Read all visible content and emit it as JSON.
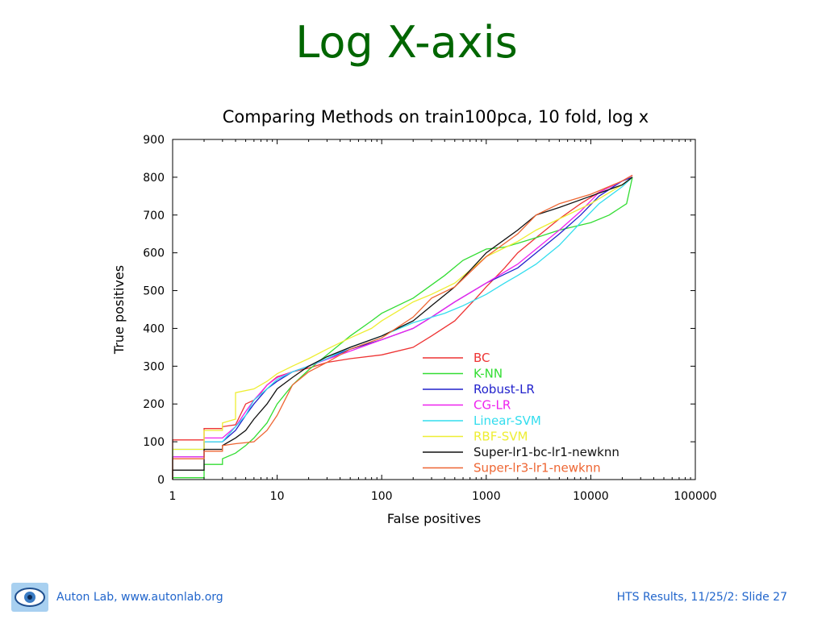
{
  "slide": {
    "title": "Log X-axis"
  },
  "footer": {
    "left": "Auton Lab, www.autonlab.org",
    "right": "HTS Results, 11/25/2: Slide 27",
    "logo_icon": "eye-logo-icon"
  },
  "chart_data": {
    "type": "line",
    "title": "Comparing Methods on train100pca, 10 fold, log x",
    "xlabel": "False positives",
    "ylabel": "True positives",
    "xscale": "log",
    "xlim": [
      1,
      100000
    ],
    "ylim": [
      0,
      900
    ],
    "xticks": [
      1,
      10,
      100,
      1000,
      10000,
      100000
    ],
    "xtick_labels": [
      "1",
      "10",
      "100",
      "1000",
      "10000",
      "100000"
    ],
    "yticks": [
      0,
      100,
      200,
      300,
      400,
      500,
      600,
      700,
      800,
      900
    ],
    "ytick_labels": [
      "0",
      "100",
      "200",
      "300",
      "400",
      "500",
      "600",
      "700",
      "800",
      "900"
    ],
    "legend_position": "bottom-right",
    "series": [
      {
        "name": "BC",
        "color": "#ee3333",
        "points": [
          [
            1,
            0
          ],
          [
            1,
            105
          ],
          [
            2,
            105
          ],
          [
            2,
            135
          ],
          [
            3,
            135
          ],
          [
            3,
            140
          ],
          [
            4,
            145
          ],
          [
            5,
            200
          ],
          [
            6,
            210
          ],
          [
            7,
            230
          ],
          [
            8,
            250
          ],
          [
            10,
            272
          ],
          [
            14,
            285
          ],
          [
            20,
            295
          ],
          [
            30,
            310
          ],
          [
            50,
            320
          ],
          [
            100,
            330
          ],
          [
            200,
            350
          ],
          [
            300,
            380
          ],
          [
            500,
            420
          ],
          [
            800,
            480
          ],
          [
            1000,
            510
          ],
          [
            1500,
            560
          ],
          [
            2000,
            600
          ],
          [
            3000,
            640
          ],
          [
            5000,
            690
          ],
          [
            8000,
            730
          ],
          [
            12000,
            760
          ],
          [
            20000,
            790
          ],
          [
            25000,
            805
          ]
        ]
      },
      {
        "name": "K-NN",
        "color": "#33dd33",
        "points": [
          [
            1,
            0
          ],
          [
            1,
            5
          ],
          [
            2,
            5
          ],
          [
            2,
            40
          ],
          [
            3,
            40
          ],
          [
            3,
            55
          ],
          [
            4,
            70
          ],
          [
            5,
            90
          ],
          [
            6,
            110
          ],
          [
            8,
            150
          ],
          [
            10,
            200
          ],
          [
            14,
            250
          ],
          [
            20,
            290
          ],
          [
            30,
            330
          ],
          [
            50,
            380
          ],
          [
            80,
            420
          ],
          [
            100,
            440
          ],
          [
            200,
            480
          ],
          [
            400,
            540
          ],
          [
            600,
            580
          ],
          [
            1000,
            610
          ],
          [
            1500,
            615
          ],
          [
            2000,
            625
          ],
          [
            3000,
            640
          ],
          [
            5000,
            660
          ],
          [
            10000,
            680
          ],
          [
            15000,
            700
          ],
          [
            22000,
            730
          ],
          [
            25000,
            800
          ]
        ]
      },
      {
        "name": "Robust-LR",
        "color": "#2222cc",
        "points": [
          [
            1,
            0
          ],
          [
            1,
            60
          ],
          [
            2,
            60
          ],
          [
            2,
            100
          ],
          [
            3,
            100
          ],
          [
            4,
            130
          ],
          [
            5,
            170
          ],
          [
            6,
            200
          ],
          [
            8,
            240
          ],
          [
            10,
            260
          ],
          [
            14,
            285
          ],
          [
            20,
            300
          ],
          [
            30,
            320
          ],
          [
            50,
            345
          ],
          [
            100,
            370
          ],
          [
            200,
            400
          ],
          [
            300,
            430
          ],
          [
            500,
            470
          ],
          [
            1000,
            520
          ],
          [
            2000,
            560
          ],
          [
            3000,
            600
          ],
          [
            5000,
            650
          ],
          [
            8000,
            700
          ],
          [
            12000,
            750
          ],
          [
            20000,
            790
          ],
          [
            25000,
            800
          ]
        ]
      },
      {
        "name": "CG-LR",
        "color": "#ee22ee",
        "points": [
          [
            1,
            0
          ],
          [
            1,
            60
          ],
          [
            2,
            60
          ],
          [
            2,
            110
          ],
          [
            3,
            110
          ],
          [
            4,
            140
          ],
          [
            5,
            180
          ],
          [
            6,
            210
          ],
          [
            8,
            250
          ],
          [
            10,
            270
          ],
          [
            14,
            285
          ],
          [
            20,
            300
          ],
          [
            30,
            318
          ],
          [
            50,
            340
          ],
          [
            100,
            370
          ],
          [
            200,
            400
          ],
          [
            300,
            430
          ],
          [
            500,
            470
          ],
          [
            1000,
            520
          ],
          [
            2000,
            570
          ],
          [
            3000,
            610
          ],
          [
            5000,
            660
          ],
          [
            8000,
            710
          ],
          [
            12000,
            760
          ],
          [
            20000,
            790
          ],
          [
            25000,
            805
          ]
        ]
      },
      {
        "name": "Linear-SVM",
        "color": "#33ddee",
        "points": [
          [
            1,
            0
          ],
          [
            1,
            80
          ],
          [
            2,
            80
          ],
          [
            2,
            100
          ],
          [
            3,
            100
          ],
          [
            4,
            140
          ],
          [
            5,
            170
          ],
          [
            6,
            210
          ],
          [
            8,
            240
          ],
          [
            10,
            265
          ],
          [
            14,
            285
          ],
          [
            20,
            300
          ],
          [
            30,
            320
          ],
          [
            50,
            350
          ],
          [
            100,
            380
          ],
          [
            200,
            415
          ],
          [
            400,
            440
          ],
          [
            600,
            460
          ],
          [
            1000,
            490
          ],
          [
            1500,
            520
          ],
          [
            2000,
            540
          ],
          [
            3000,
            570
          ],
          [
            5000,
            620
          ],
          [
            8000,
            680
          ],
          [
            12000,
            730
          ],
          [
            20000,
            775
          ],
          [
            25000,
            800
          ]
        ]
      },
      {
        "name": "RBF-SVM",
        "color": "#eeee33",
        "points": [
          [
            1,
            0
          ],
          [
            1,
            80
          ],
          [
            2,
            80
          ],
          [
            2,
            130
          ],
          [
            3,
            130
          ],
          [
            3,
            150
          ],
          [
            4,
            160
          ],
          [
            4,
            230
          ],
          [
            6,
            240
          ],
          [
            8,
            260
          ],
          [
            10,
            280
          ],
          [
            14,
            300
          ],
          [
            20,
            320
          ],
          [
            30,
            345
          ],
          [
            50,
            375
          ],
          [
            80,
            400
          ],
          [
            100,
            420
          ],
          [
            200,
            470
          ],
          [
            300,
            490
          ],
          [
            500,
            520
          ],
          [
            1000,
            590
          ],
          [
            2000,
            630
          ],
          [
            3000,
            660
          ],
          [
            5000,
            690
          ],
          [
            10000,
            730
          ],
          [
            20000,
            780
          ],
          [
            25000,
            800
          ]
        ]
      },
      {
        "name": "Super-lr1-bc-lr1-newknn",
        "color": "#111111",
        "points": [
          [
            1,
            0
          ],
          [
            1,
            25
          ],
          [
            2,
            25
          ],
          [
            2,
            80
          ],
          [
            3,
            80
          ],
          [
            3,
            90
          ],
          [
            4,
            110
          ],
          [
            5,
            130
          ],
          [
            6,
            160
          ],
          [
            8,
            200
          ],
          [
            10,
            240
          ],
          [
            14,
            270
          ],
          [
            20,
            300
          ],
          [
            30,
            325
          ],
          [
            50,
            350
          ],
          [
            100,
            380
          ],
          [
            200,
            420
          ],
          [
            300,
            460
          ],
          [
            500,
            510
          ],
          [
            1000,
            600
          ],
          [
            2000,
            660
          ],
          [
            3000,
            700
          ],
          [
            5000,
            720
          ],
          [
            10000,
            750
          ],
          [
            20000,
            780
          ],
          [
            25000,
            800
          ]
        ]
      },
      {
        "name": "Super-lr3-lr1-newknn",
        "color": "#ee6633",
        "points": [
          [
            1,
            0
          ],
          [
            1,
            55
          ],
          [
            2,
            55
          ],
          [
            2,
            75
          ],
          [
            3,
            75
          ],
          [
            3,
            90
          ],
          [
            4,
            95
          ],
          [
            6,
            100
          ],
          [
            8,
            130
          ],
          [
            10,
            170
          ],
          [
            14,
            250
          ],
          [
            20,
            285
          ],
          [
            30,
            310
          ],
          [
            50,
            345
          ],
          [
            100,
            375
          ],
          [
            200,
            430
          ],
          [
            300,
            480
          ],
          [
            500,
            510
          ],
          [
            1000,
            590
          ],
          [
            2000,
            650
          ],
          [
            3000,
            700
          ],
          [
            5000,
            730
          ],
          [
            10000,
            755
          ],
          [
            20000,
            790
          ],
          [
            25000,
            805
          ]
        ]
      }
    ]
  }
}
